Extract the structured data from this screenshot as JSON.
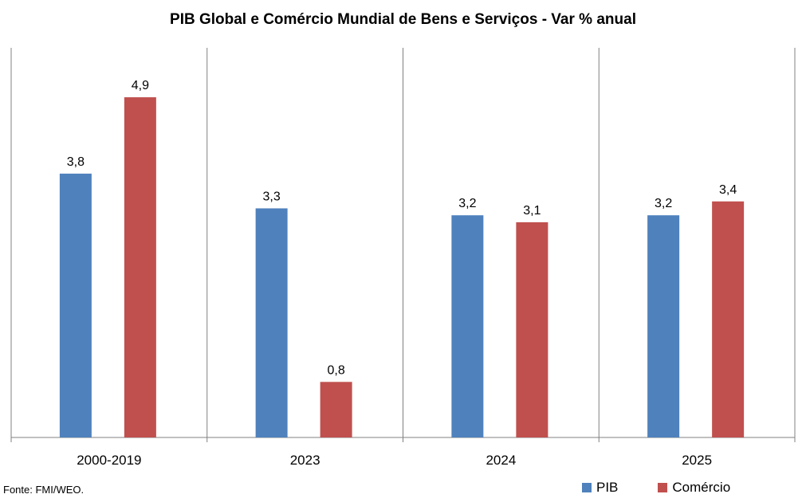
{
  "chart_data": {
    "type": "bar",
    "title": "PIB Global e Comércio Mundial de Bens e Serviços - Var % anual",
    "categories": [
      "2000-2019",
      "2023",
      "2024",
      "2025"
    ],
    "series": [
      {
        "name": "PIB",
        "values": [
          3.8,
          3.3,
          3.2,
          3.2
        ],
        "labels": [
          "3,8",
          "3,3",
          "3,2",
          "3,2"
        ],
        "color": "#4f81bd"
      },
      {
        "name": "Comércio",
        "values": [
          4.9,
          0.8,
          3.1,
          3.4
        ],
        "labels": [
          "4,9",
          "0,8",
          "3,1",
          "3,4"
        ],
        "color": "#c0504d"
      }
    ],
    "ylim": [
      0,
      5.5
    ],
    "xlabel": "",
    "ylabel": "",
    "legend_position": "bottom-right",
    "grid": false
  },
  "source": "Fonte: FMI/WEO.",
  "legend": {
    "pib": "PIB",
    "comercio": "Comércio"
  }
}
